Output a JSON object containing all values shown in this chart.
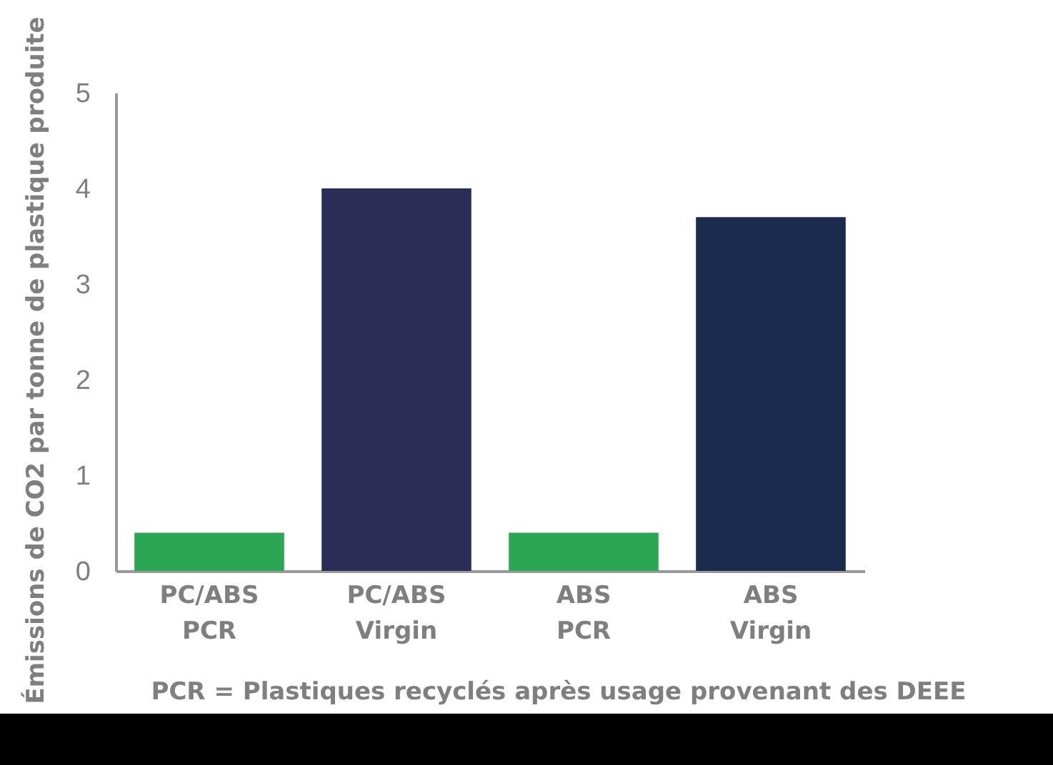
{
  "chart_data": {
    "type": "bar",
    "ylabel": "Émissions de CO2 par tonne de plastique produite",
    "categories": [
      "PC/ABS\nPCR",
      "PC/ABS\nVirgin",
      "ABS\nPCR",
      "ABS\nVirgin"
    ],
    "values": [
      0.4,
      4.0,
      0.4,
      3.7
    ],
    "colors": [
      "#2aa655",
      "#2b2d57",
      "#2aa655",
      "#1b2b4d"
    ],
    "ylim": [
      0,
      5
    ],
    "yticks": [
      0,
      1,
      2,
      3,
      4,
      5
    ],
    "annotations": [
      "PCR = Plastiques recyclés après usage provenant des DEEE"
    ]
  }
}
